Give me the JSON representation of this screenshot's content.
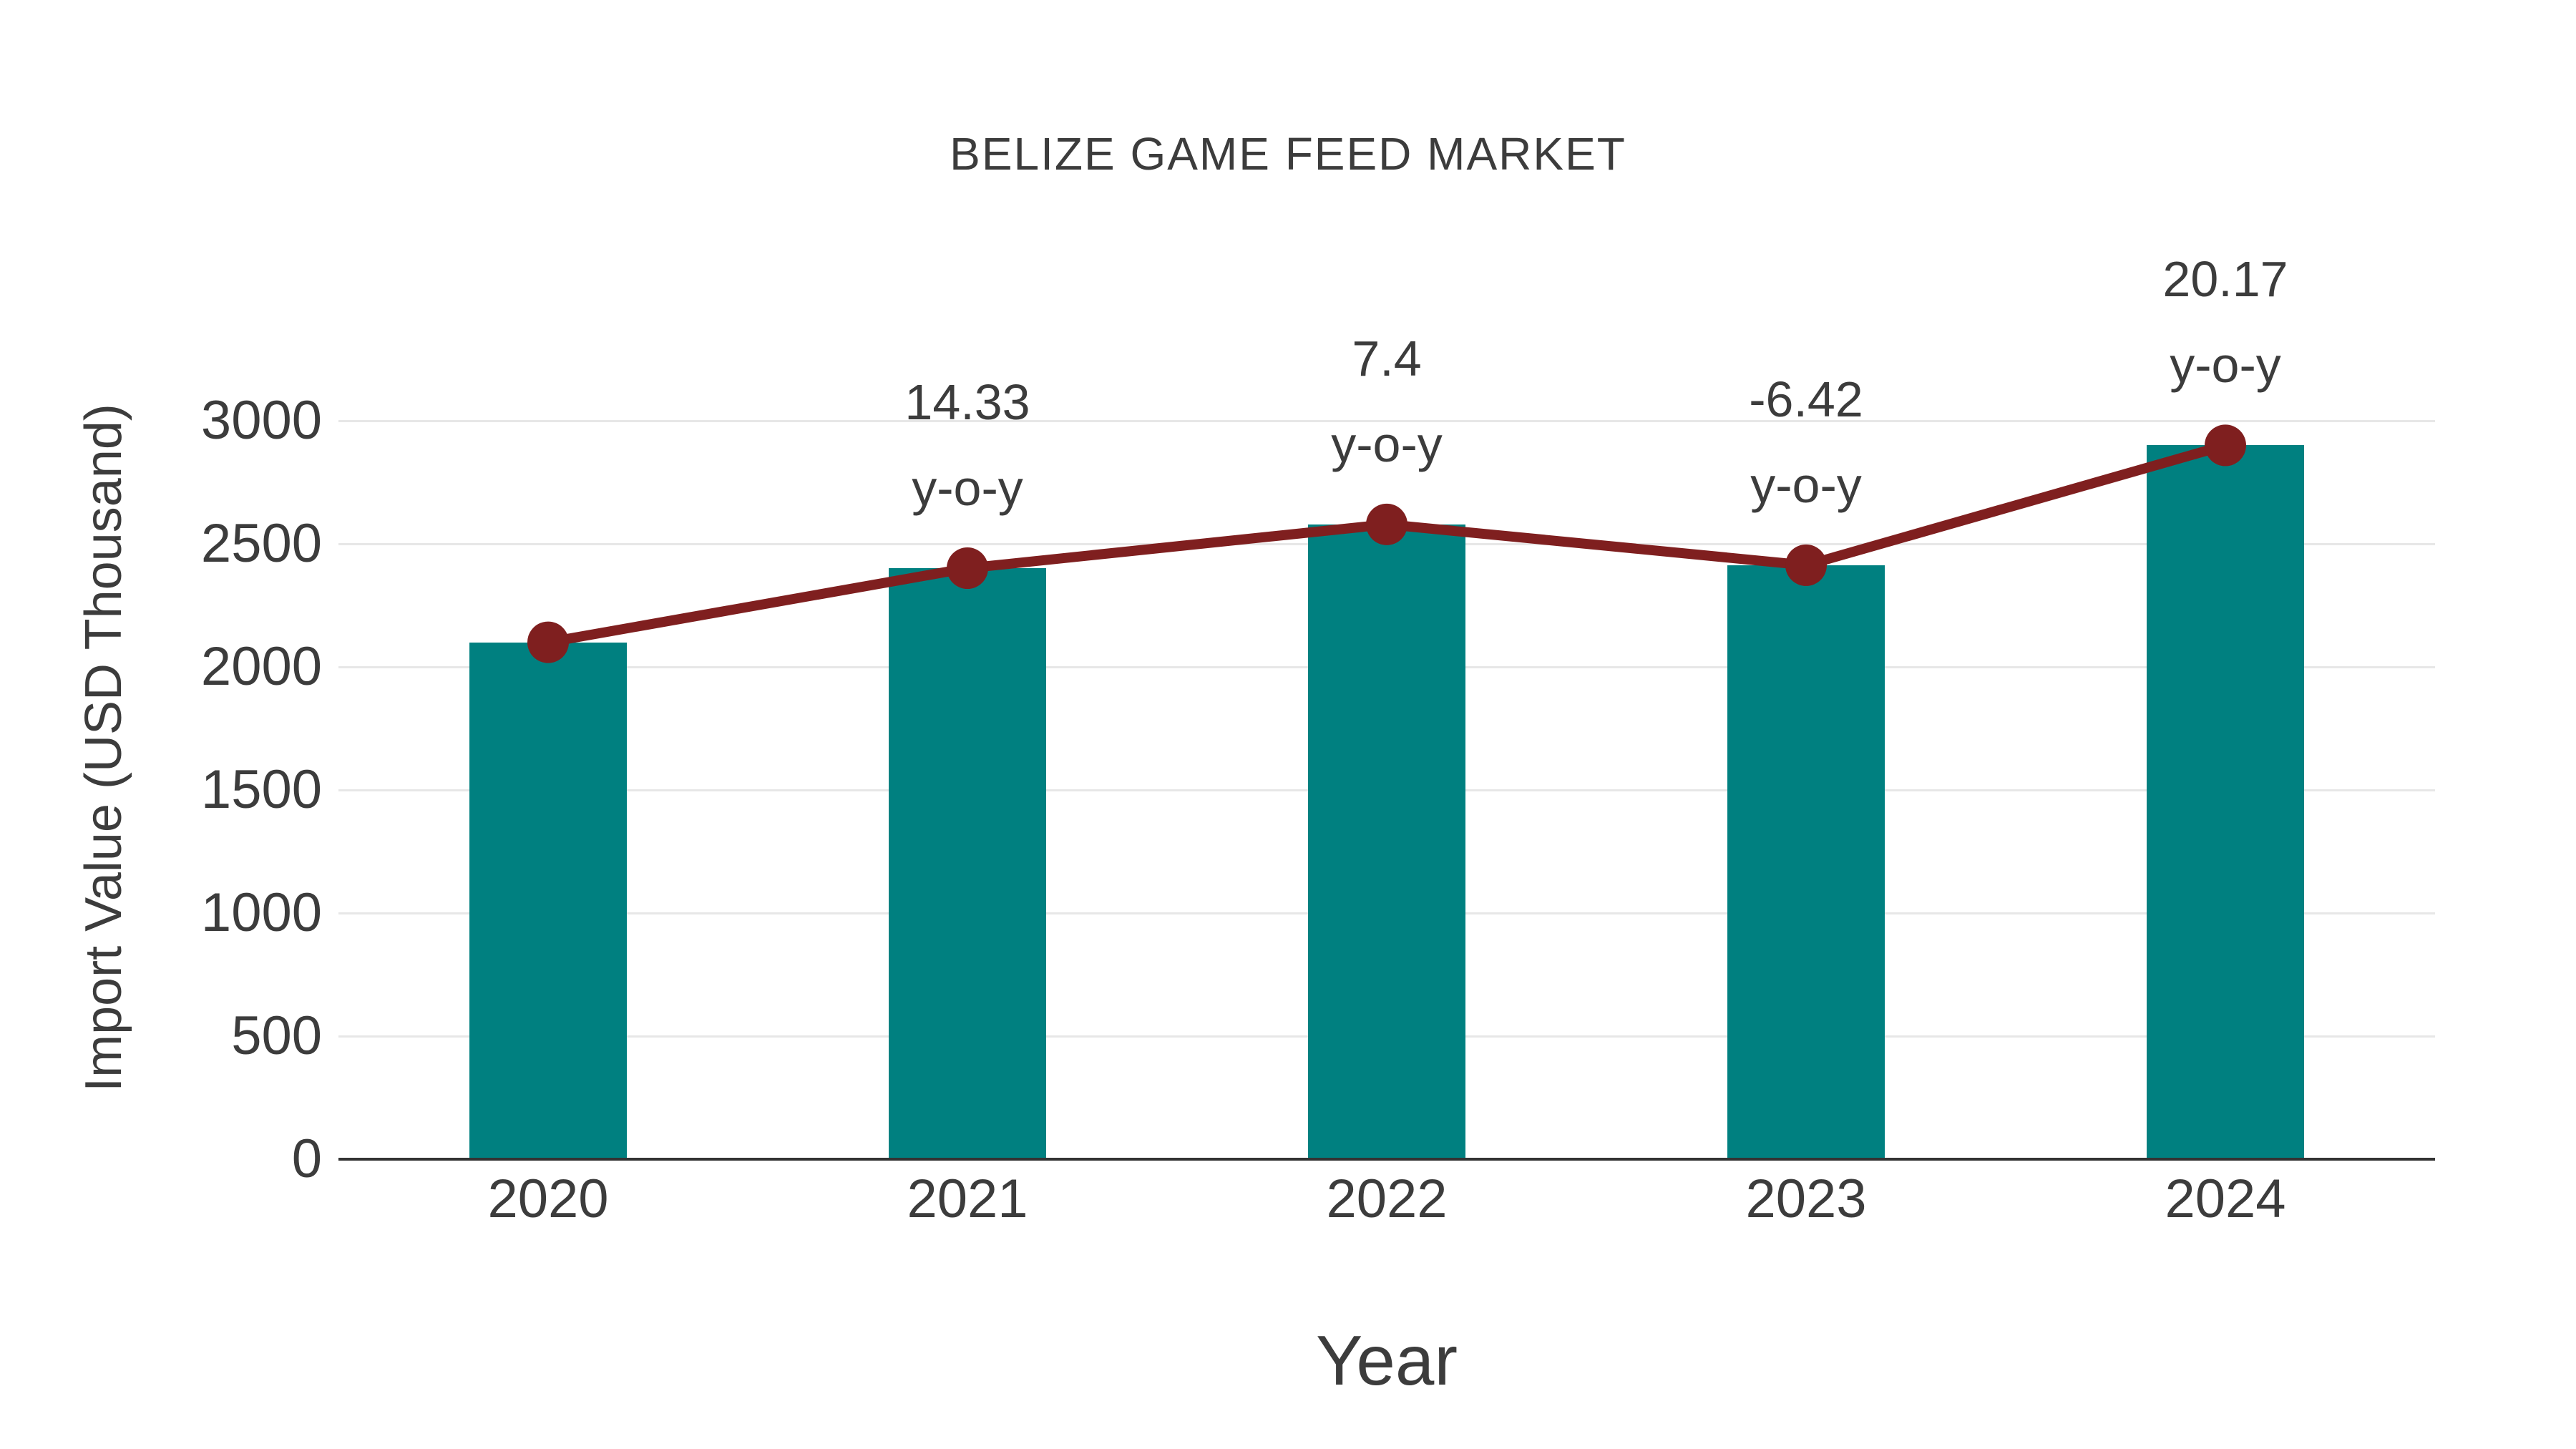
{
  "title": "BELIZE GAME FEED MARKET",
  "chart_data": {
    "type": "bar",
    "subtype": "bar-with-line-overlay",
    "title": "BELIZE GAME FEED MARKET",
    "xlabel": "Year",
    "ylabel": "Import Value (USD Thousand)",
    "categories": [
      "2020",
      "2021",
      "2022",
      "2023",
      "2024"
    ],
    "series": [
      {
        "name": "Import Value (USD Thousand)",
        "type": "bar",
        "color": "#008080",
        "values": [
          2100,
          2401,
          2579,
          2413,
          2900
        ]
      },
      {
        "name": "y-o-y growth",
        "type": "line",
        "color": "#7f1f1f",
        "values": [
          2100,
          2401,
          2579,
          2413,
          2900
        ]
      }
    ],
    "annotations": [
      {
        "category": "2021",
        "line1": "14.33",
        "line2": "y-o-y"
      },
      {
        "category": "2022",
        "line1": "7.4",
        "line2": "y-o-y"
      },
      {
        "category": "2023",
        "line1": "-6.42",
        "line2": "y-o-y"
      },
      {
        "category": "2024",
        "line1": "20.17",
        "line2": "y-o-y"
      }
    ],
    "yticks": [
      0,
      500,
      1000,
      1500,
      2000,
      2500,
      3000
    ],
    "ylim": [
      0,
      3000
    ],
    "grid": "horizontal-light",
    "legend_position": "none",
    "colors": {
      "bar": "#008080",
      "line": "#7f1f1f",
      "text": "#3c3c3c",
      "grid": "#e7e7e7",
      "axis": "#333333",
      "background": "#ffffff"
    }
  }
}
